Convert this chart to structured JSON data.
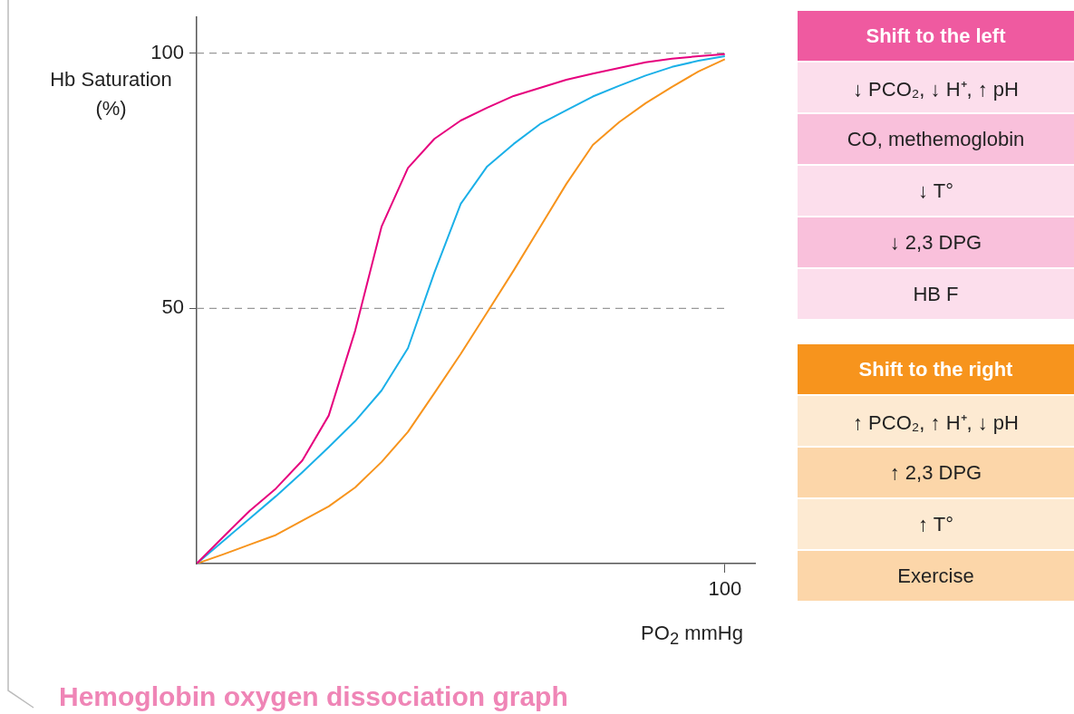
{
  "chart_data": [
    {
      "type": "line",
      "title": "Hemoglobin oxygen dissociation graph",
      "xlabel": "PO$_{2}$ mmHg",
      "ylabel": "Hb Saturation (%)",
      "ylim": [
        0,
        107
      ],
      "yticks": [
        50,
        100
      ],
      "grid": false,
      "legend": false,
      "marker": "none",
      "line_style": "solid",
      "categories": [
        null,
        null,
        null,
        null,
        null,
        null,
        null,
        null,
        null,
        null,
        null,
        null,
        null,
        null,
        null,
        null,
        null,
        null,
        null,
        null,
        "100"
      ],
      "ref_lines": [
        {
          "axis": "y",
          "value": 100,
          "color": "#999999",
          "line_style": "dashed"
        },
        {
          "axis": "y",
          "value": 50,
          "color": "#999999",
          "line_style": "dashed"
        }
      ],
      "series": [
        {
          "color": "#e6007e",
          "values": [
            0,
            5.2,
            10.3,
            14.7,
            20.2,
            29.0,
            45.6,
            66.0,
            77.5,
            83.2,
            86.8,
            89.3,
            91.6,
            93.2,
            94.8,
            96.0,
            97.1,
            98.2,
            98.9,
            99.4,
            99.8
          ]
        },
        {
          "color": "#1bb0e8",
          "values": [
            0,
            4.4,
            8.8,
            13.2,
            17.9,
            22.8,
            27.9,
            33.9,
            42.2,
            57.0,
            70.5,
            77.8,
            82.2,
            86.1,
            88.8,
            91.5,
            93.6,
            95.6,
            97.3,
            98.5,
            99.4
          ]
        },
        {
          "color": "#f7941d",
          "values": [
            0,
            1.8,
            3.7,
            5.6,
            8.4,
            11.2,
            14.9,
            19.9,
            25.8,
            33.4,
            41.1,
            49.2,
            57.4,
            65.9,
            74.4,
            82.0,
            86.5,
            90.2,
            93.4,
            96.4,
            98.8
          ]
        }
      ]
    },
    {
      "type": "other",
      "title": "Shift to the left",
      "color": "#ef5aa0",
      "annotations": [
        "↓ PCO₂, ↓ H⁺, ↑ pH",
        "CO, methemoglobin",
        "↓ T°",
        "↓ 2,3 DPG",
        "HB F"
      ]
    },
    {
      "type": "other",
      "title": "Shift to the right",
      "color": "#f7941d",
      "annotations": [
        "↑ PCO₂, ↑ H⁺, ↓ pH",
        "↑ 2,3 DPG",
        "↑ T°",
        "Exercise"
      ]
    }
  ]
}
